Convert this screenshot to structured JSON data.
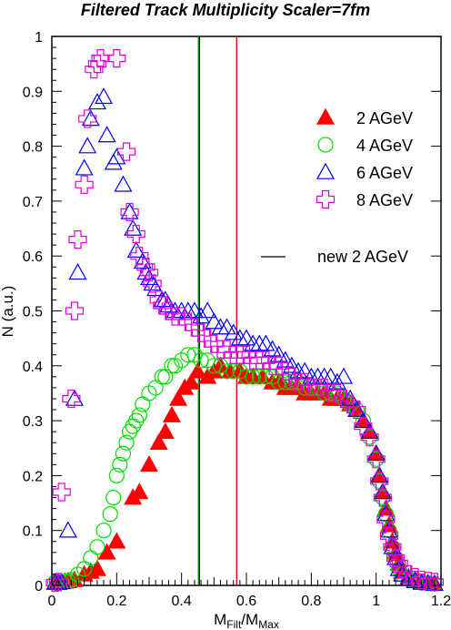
{
  "chart_data": {
    "type": "scatter",
    "title": "Filtered Track Multiplicity Scaler=7fm",
    "xlabel": {
      "main": "M",
      "sub1": "Filt",
      "mid": "/M",
      "sub2": "Max"
    },
    "ylabel": "N (a.u.)",
    "xlim": [
      0,
      1.2
    ],
    "ylim": [
      0,
      1
    ],
    "x_ticks": [
      "0",
      "0.2",
      "0.4",
      "0.6",
      "0.8",
      "1",
      "1.2"
    ],
    "y_ticks": [
      "0",
      "0.1",
      "0.2",
      "0.3",
      "0.4",
      "0.5",
      "0.6",
      "0.7",
      "0.8",
      "0.9",
      "1"
    ],
    "grid": false,
    "legend_position": "top-right",
    "vertical_lines": [
      {
        "label": "new 2 AGeV",
        "x": 0.455,
        "color": "#000000"
      },
      {
        "x": 0.452,
        "color": "#00aa00"
      },
      {
        "x": 0.57,
        "color": "#cc0000"
      }
    ],
    "series": [
      {
        "name": "2 AGeV",
        "marker": "filled-triangle",
        "color": "#ff0000",
        "points": [
          [
            0.01,
            0.005
          ],
          [
            0.02,
            0.005
          ],
          [
            0.03,
            0.006
          ],
          [
            0.04,
            0.007
          ],
          [
            0.05,
            0.008
          ],
          [
            0.07,
            0.01
          ],
          [
            0.1,
            0.02
          ],
          [
            0.12,
            0.025
          ],
          [
            0.14,
            0.03
          ],
          [
            0.17,
            0.06
          ],
          [
            0.2,
            0.08
          ],
          [
            0.25,
            0.16
          ],
          [
            0.27,
            0.17
          ],
          [
            0.3,
            0.22
          ],
          [
            0.33,
            0.26
          ],
          [
            0.35,
            0.28
          ],
          [
            0.37,
            0.31
          ],
          [
            0.39,
            0.34
          ],
          [
            0.41,
            0.36
          ],
          [
            0.43,
            0.37
          ],
          [
            0.45,
            0.39
          ],
          [
            0.48,
            0.38
          ],
          [
            0.5,
            0.39
          ],
          [
            0.52,
            0.4
          ],
          [
            0.55,
            0.39
          ],
          [
            0.58,
            0.39
          ],
          [
            0.6,
            0.38
          ],
          [
            0.62,
            0.38
          ],
          [
            0.65,
            0.38
          ],
          [
            0.68,
            0.37
          ],
          [
            0.7,
            0.37
          ],
          [
            0.72,
            0.36
          ],
          [
            0.74,
            0.36
          ],
          [
            0.76,
            0.36
          ],
          [
            0.78,
            0.35
          ],
          [
            0.8,
            0.35
          ],
          [
            0.82,
            0.35
          ],
          [
            0.84,
            0.35
          ],
          [
            0.86,
            0.34
          ],
          [
            0.88,
            0.34
          ],
          [
            0.9,
            0.34
          ],
          [
            0.92,
            0.33
          ],
          [
            0.94,
            0.32
          ],
          [
            0.96,
            0.3
          ],
          [
            0.98,
            0.28
          ],
          [
            1.0,
            0.24
          ],
          [
            1.01,
            0.2
          ],
          [
            1.02,
            0.17
          ],
          [
            1.03,
            0.14
          ],
          [
            1.04,
            0.11
          ],
          [
            1.05,
            0.08
          ],
          [
            1.06,
            0.06
          ],
          [
            1.07,
            0.04
          ],
          [
            1.08,
            0.025
          ],
          [
            1.1,
            0.015
          ],
          [
            1.12,
            0.01
          ],
          [
            1.14,
            0.005
          ],
          [
            1.16,
            0.004
          ],
          [
            1.18,
            0.003
          ]
        ]
      },
      {
        "name": "4 AGeV",
        "marker": "open-circle",
        "color": "#00dd00",
        "points": [
          [
            0.01,
            0.005
          ],
          [
            0.02,
            0.005
          ],
          [
            0.03,
            0.006
          ],
          [
            0.04,
            0.007
          ],
          [
            0.05,
            0.008
          ],
          [
            0.06,
            0.01
          ],
          [
            0.08,
            0.02
          ],
          [
            0.1,
            0.03
          ],
          [
            0.12,
            0.05
          ],
          [
            0.14,
            0.07
          ],
          [
            0.16,
            0.1
          ],
          [
            0.18,
            0.13
          ],
          [
            0.19,
            0.16
          ],
          [
            0.2,
            0.2
          ],
          [
            0.21,
            0.22
          ],
          [
            0.22,
            0.24
          ],
          [
            0.23,
            0.26
          ],
          [
            0.24,
            0.28
          ],
          [
            0.25,
            0.29
          ],
          [
            0.26,
            0.3
          ],
          [
            0.27,
            0.31
          ],
          [
            0.28,
            0.33
          ],
          [
            0.3,
            0.35
          ],
          [
            0.32,
            0.36
          ],
          [
            0.34,
            0.38
          ],
          [
            0.35,
            0.38
          ],
          [
            0.37,
            0.4
          ],
          [
            0.38,
            0.4
          ],
          [
            0.4,
            0.41
          ],
          [
            0.42,
            0.42
          ],
          [
            0.44,
            0.42
          ],
          [
            0.46,
            0.41
          ],
          [
            0.48,
            0.41
          ],
          [
            0.5,
            0.4
          ],
          [
            0.52,
            0.4
          ],
          [
            0.54,
            0.39
          ],
          [
            0.56,
            0.39
          ],
          [
            0.58,
            0.39
          ],
          [
            0.6,
            0.38
          ],
          [
            0.62,
            0.38
          ],
          [
            0.64,
            0.38
          ],
          [
            0.66,
            0.38
          ],
          [
            0.68,
            0.38
          ],
          [
            0.7,
            0.37
          ],
          [
            0.72,
            0.37
          ],
          [
            0.74,
            0.37
          ],
          [
            0.76,
            0.37
          ],
          [
            0.78,
            0.36
          ],
          [
            0.8,
            0.36
          ],
          [
            0.82,
            0.36
          ],
          [
            0.84,
            0.35
          ],
          [
            0.86,
            0.35
          ],
          [
            0.88,
            0.35
          ],
          [
            0.9,
            0.34
          ],
          [
            0.92,
            0.33
          ],
          [
            0.94,
            0.32
          ],
          [
            0.96,
            0.3
          ],
          [
            0.98,
            0.27
          ],
          [
            1.0,
            0.23
          ],
          [
            1.01,
            0.19
          ],
          [
            1.02,
            0.16
          ],
          [
            1.03,
            0.13
          ],
          [
            1.04,
            0.1
          ],
          [
            1.05,
            0.07
          ],
          [
            1.06,
            0.05
          ],
          [
            1.07,
            0.03
          ],
          [
            1.08,
            0.02
          ],
          [
            1.1,
            0.012
          ],
          [
            1.12,
            0.008
          ],
          [
            1.14,
            0.005
          ],
          [
            1.16,
            0.004
          ],
          [
            1.18,
            0.003
          ]
        ]
      },
      {
        "name": "6 AGeV",
        "marker": "open-triangle",
        "color": "#0000ff",
        "points": [
          [
            0.01,
            0.005
          ],
          [
            0.02,
            0.005
          ],
          [
            0.03,
            0.006
          ],
          [
            0.05,
            0.1
          ],
          [
            0.07,
            0.34
          ],
          [
            0.08,
            0.57
          ],
          [
            0.1,
            0.76
          ],
          [
            0.11,
            0.8
          ],
          [
            0.12,
            0.85
          ],
          [
            0.14,
            0.88
          ],
          [
            0.16,
            0.89
          ],
          [
            0.17,
            0.82
          ],
          [
            0.19,
            0.77
          ],
          [
            0.2,
            0.78
          ],
          [
            0.22,
            0.73
          ],
          [
            0.24,
            0.68
          ],
          [
            0.25,
            0.65
          ],
          [
            0.26,
            0.61
          ],
          [
            0.28,
            0.59
          ],
          [
            0.29,
            0.57
          ],
          [
            0.3,
            0.56
          ],
          [
            0.31,
            0.55
          ],
          [
            0.32,
            0.54
          ],
          [
            0.34,
            0.52
          ],
          [
            0.35,
            0.52
          ],
          [
            0.36,
            0.51
          ],
          [
            0.38,
            0.5
          ],
          [
            0.4,
            0.5
          ],
          [
            0.42,
            0.5
          ],
          [
            0.44,
            0.5
          ],
          [
            0.46,
            0.49
          ],
          [
            0.48,
            0.5
          ],
          [
            0.5,
            0.48
          ],
          [
            0.52,
            0.47
          ],
          [
            0.54,
            0.47
          ],
          [
            0.56,
            0.46
          ],
          [
            0.58,
            0.45
          ],
          [
            0.6,
            0.45
          ],
          [
            0.62,
            0.44
          ],
          [
            0.64,
            0.44
          ],
          [
            0.66,
            0.44
          ],
          [
            0.68,
            0.43
          ],
          [
            0.7,
            0.42
          ],
          [
            0.72,
            0.41
          ],
          [
            0.74,
            0.4
          ],
          [
            0.76,
            0.39
          ],
          [
            0.78,
            0.39
          ],
          [
            0.8,
            0.38
          ],
          [
            0.82,
            0.38
          ],
          [
            0.84,
            0.38
          ],
          [
            0.86,
            0.38
          ],
          [
            0.88,
            0.37
          ],
          [
            0.9,
            0.38
          ],
          [
            0.92,
            0.34
          ],
          [
            0.94,
            0.32
          ],
          [
            0.96,
            0.3
          ],
          [
            0.98,
            0.28
          ],
          [
            1.0,
            0.24
          ],
          [
            1.01,
            0.2
          ],
          [
            1.02,
            0.17
          ],
          [
            1.03,
            0.13
          ],
          [
            1.04,
            0.1
          ],
          [
            1.05,
            0.07
          ],
          [
            1.06,
            0.05
          ],
          [
            1.07,
            0.03
          ],
          [
            1.08,
            0.02
          ],
          [
            1.1,
            0.012
          ],
          [
            1.12,
            0.008
          ],
          [
            1.14,
            0.005
          ],
          [
            1.16,
            0.004
          ],
          [
            1.18,
            0.003
          ]
        ]
      },
      {
        "name": "8 AGeV",
        "marker": "open-cross",
        "color": "#dd00dd",
        "points": [
          [
            0.01,
            0.005
          ],
          [
            0.02,
            0.006
          ],
          [
            0.03,
            0.17
          ],
          [
            0.06,
            0.34
          ],
          [
            0.07,
            0.5
          ],
          [
            0.08,
            0.63
          ],
          [
            0.1,
            0.73
          ],
          [
            0.11,
            0.85
          ],
          [
            0.13,
            0.94
          ],
          [
            0.14,
            0.95
          ],
          [
            0.15,
            0.96
          ],
          [
            0.2,
            0.96
          ],
          [
            0.23,
            0.79
          ],
          [
            0.24,
            0.68
          ],
          [
            0.26,
            0.64
          ],
          [
            0.27,
            0.6
          ],
          [
            0.29,
            0.58
          ],
          [
            0.3,
            0.57
          ],
          [
            0.31,
            0.55
          ],
          [
            0.33,
            0.52
          ],
          [
            0.34,
            0.51
          ],
          [
            0.36,
            0.5
          ],
          [
            0.38,
            0.49
          ],
          [
            0.4,
            0.49
          ],
          [
            0.42,
            0.48
          ],
          [
            0.44,
            0.47
          ],
          [
            0.46,
            0.46
          ],
          [
            0.48,
            0.45
          ],
          [
            0.5,
            0.44
          ],
          [
            0.52,
            0.43
          ],
          [
            0.54,
            0.43
          ],
          [
            0.56,
            0.42
          ],
          [
            0.58,
            0.42
          ],
          [
            0.6,
            0.42
          ],
          [
            0.62,
            0.41
          ],
          [
            0.64,
            0.41
          ],
          [
            0.66,
            0.41
          ],
          [
            0.68,
            0.4
          ],
          [
            0.7,
            0.4
          ],
          [
            0.72,
            0.39
          ],
          [
            0.74,
            0.38
          ],
          [
            0.76,
            0.37
          ],
          [
            0.78,
            0.37
          ],
          [
            0.8,
            0.36
          ],
          [
            0.82,
            0.36
          ],
          [
            0.84,
            0.36
          ],
          [
            0.86,
            0.35
          ],
          [
            0.88,
            0.35
          ],
          [
            0.9,
            0.34
          ],
          [
            0.92,
            0.33
          ],
          [
            0.94,
            0.32
          ],
          [
            0.96,
            0.29
          ],
          [
            0.98,
            0.27
          ],
          [
            1.0,
            0.23
          ],
          [
            1.01,
            0.19
          ],
          [
            1.02,
            0.16
          ],
          [
            1.03,
            0.12
          ],
          [
            1.04,
            0.09
          ],
          [
            1.05,
            0.07
          ],
          [
            1.06,
            0.05
          ],
          [
            1.07,
            0.04
          ],
          [
            1.08,
            0.03
          ],
          [
            1.1,
            0.02
          ],
          [
            1.12,
            0.015
          ],
          [
            1.14,
            0.01
          ],
          [
            1.16,
            0.008
          ],
          [
            1.18,
            0.006
          ]
        ]
      }
    ]
  }
}
